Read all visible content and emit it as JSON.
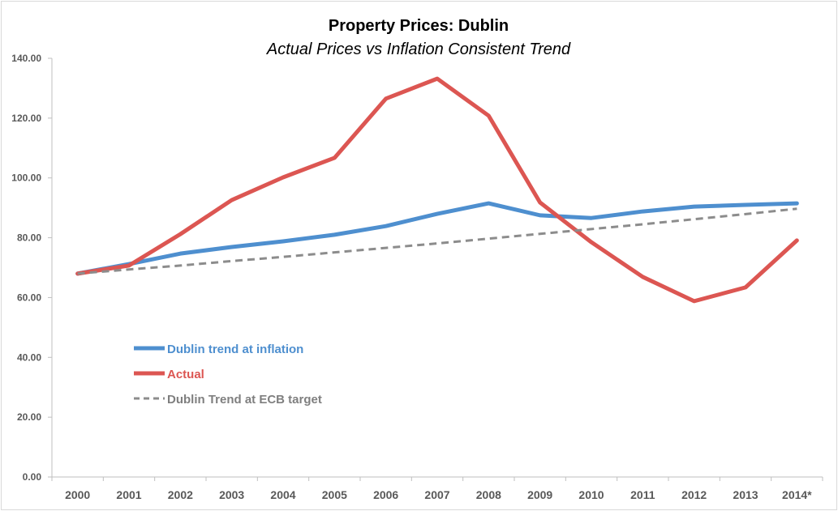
{
  "chart_data": {
    "type": "line",
    "title": "Property Prices: Dublin",
    "subtitle": "Actual Prices vs Inflation Consistent Trend",
    "xlabel": "",
    "ylabel": "",
    "categories": [
      "2000",
      "2001",
      "2002",
      "2003",
      "2004",
      "2005",
      "2006",
      "2007",
      "2008",
      "2009",
      "2010",
      "2011",
      "2012",
      "2013",
      "2014*"
    ],
    "ylim": [
      0,
      140
    ],
    "yticks": [
      "0.00",
      "20.00",
      "40.00",
      "60.00",
      "80.00",
      "100.00",
      "120.00",
      "140.00"
    ],
    "grid": false,
    "legend_position": "left-middle",
    "series": [
      {
        "name": "Dublin trend at inflation",
        "color": "#4e8fcf",
        "style": "solid",
        "values": [
          68.0,
          71.2,
          74.7,
          76.9,
          78.8,
          81.0,
          83.9,
          88.0,
          91.5,
          87.5,
          86.6,
          88.8,
          90.4,
          91.0,
          91.5
        ]
      },
      {
        "name": "Actual",
        "color": "#dc5652",
        "style": "solid",
        "values": [
          68.0,
          70.7,
          81.2,
          92.6,
          100.2,
          106.7,
          126.5,
          133.2,
          120.8,
          91.8,
          78.5,
          66.9,
          58.8,
          63.4,
          79.1
        ]
      },
      {
        "name": "Dublin Trend at ECB target",
        "color": "#8c8c8c",
        "style": "dashed",
        "values": [
          68.0,
          69.4,
          70.7,
          72.2,
          73.6,
          75.1,
          76.6,
          78.1,
          79.7,
          81.3,
          82.9,
          84.5,
          86.2,
          87.9,
          89.7
        ]
      }
    ]
  }
}
